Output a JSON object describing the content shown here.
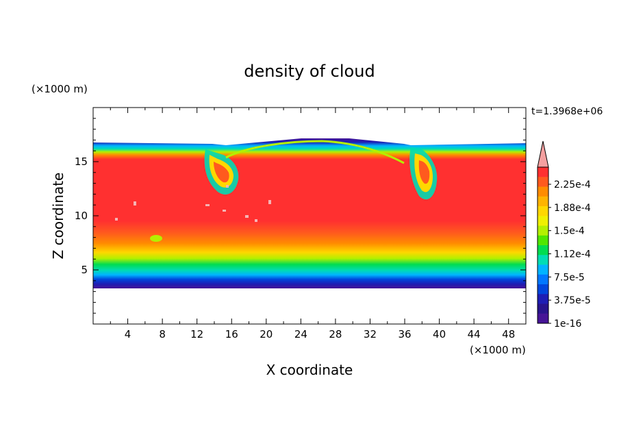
{
  "chart_data": {
    "type": "heatmap",
    "title": "density of cloud",
    "time_label": "t=1.3968e+06",
    "xlabel": "X coordinate",
    "ylabel": "Z coordinate",
    "x_unit": "(×1000 m)",
    "y_unit": "(×1000 m)",
    "xlim": [
      0,
      50
    ],
    "ylim": [
      0,
      20
    ],
    "x_ticks": [
      4,
      8,
      12,
      16,
      20,
      24,
      28,
      32,
      36,
      40,
      44,
      48
    ],
    "y_ticks": [
      5,
      10,
      15
    ],
    "grid": false,
    "colorbar": {
      "labels": [
        "2.25e-4",
        "1.88e-4",
        "1.5e-4",
        "1.12e-4",
        "7.5e-5",
        "3.75e-5",
        "1e-16"
      ],
      "colors_top_to_bottom": [
        "#ff3030",
        "#ff5a1e",
        "#ff8c00",
        "#ffb400",
        "#ffd700",
        "#f0f000",
        "#b4f000",
        "#50e600",
        "#00dc50",
        "#00dcb4",
        "#00b4ff",
        "#0078ff",
        "#0046dc",
        "#1e1eb4",
        "#28148c",
        "#461496"
      ],
      "extend_top_color": "#f5a0a0"
    },
    "field_description_values": {
      "cloud_base_z": 3.3,
      "cloud_top_z": 16.5,
      "max_density": 0.000225,
      "min_density": 1e-16
    }
  }
}
